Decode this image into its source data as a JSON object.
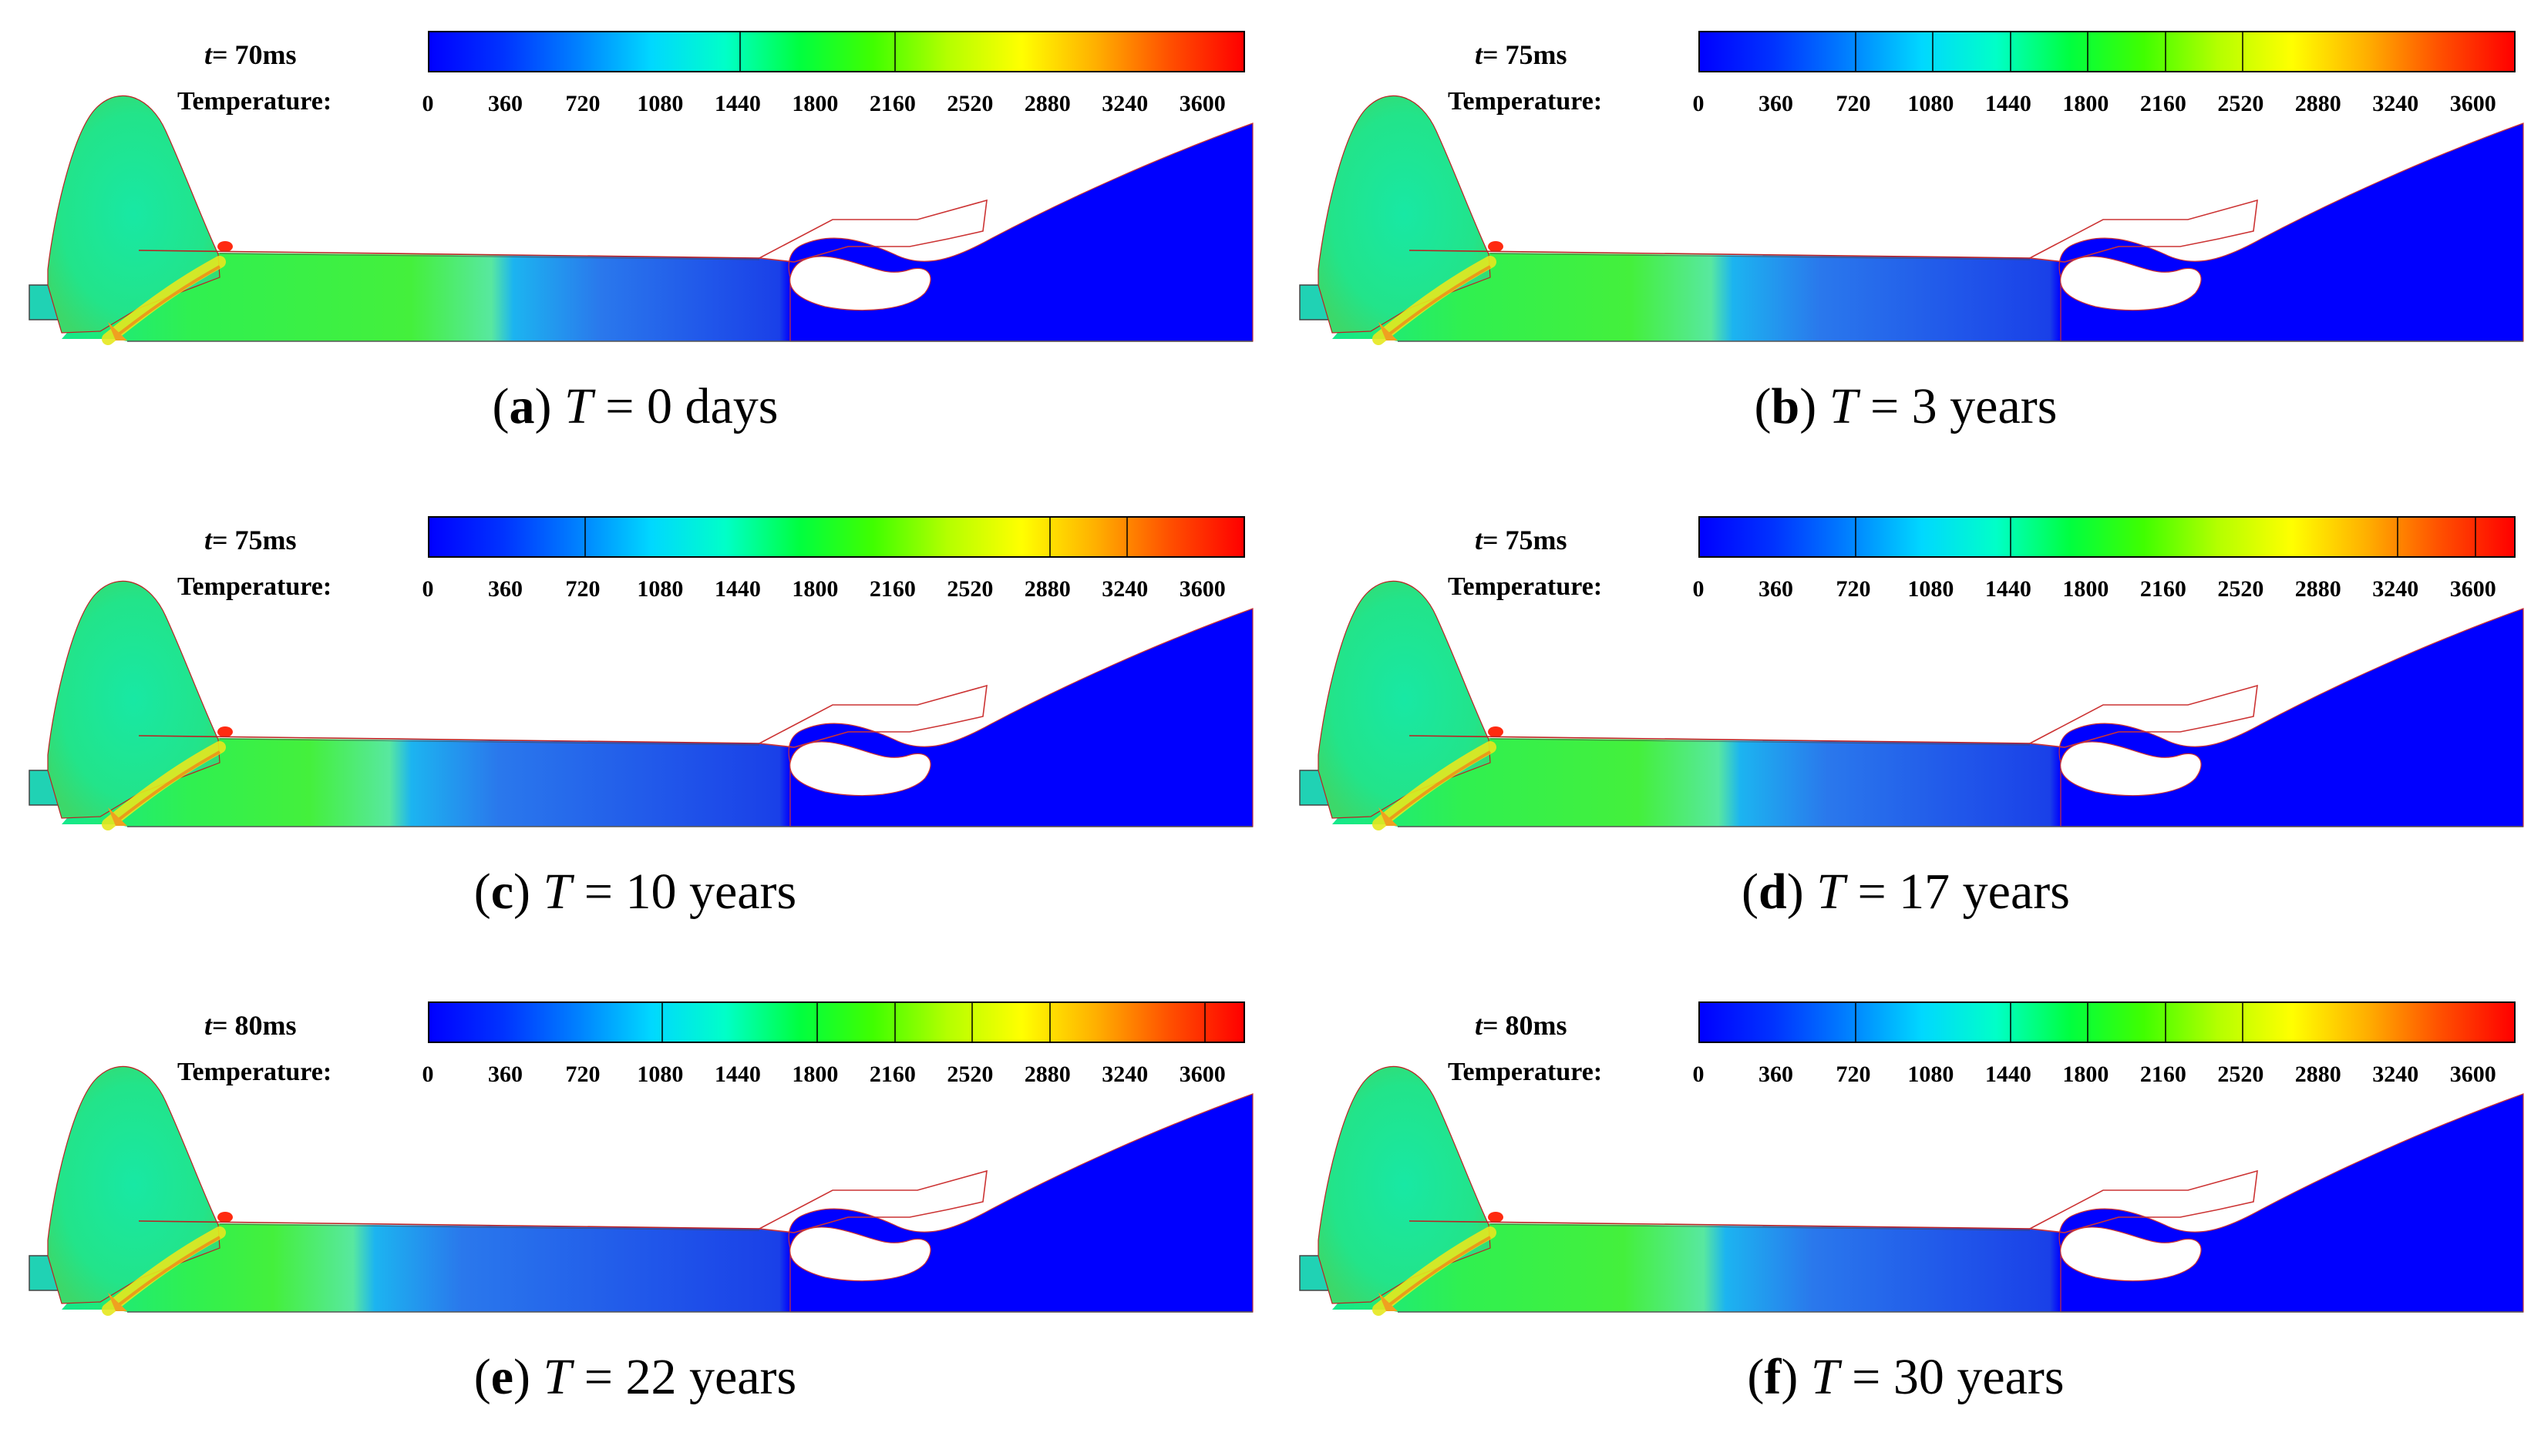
{
  "colorbar_ticks": [
    "0",
    "360",
    "720",
    "1080",
    "1440",
    "1800",
    "2160",
    "2520",
    "2880",
    "3240",
    "3600"
  ],
  "colorbar_gradient": [
    "#0000ff",
    "#0033ff",
    "#0080ff",
    "#00d8ff",
    "#00ffc8",
    "#00ff40",
    "#40ff00",
    "#b4ff00",
    "#ffff00",
    "#ffb000",
    "#ff5000",
    "#ff0000"
  ],
  "panels": [
    {
      "time_label": "= 70ms",
      "time_var": "t",
      "legend_label": "Temperature:",
      "caption_letter": "a",
      "caption_var": "T",
      "caption_value": " = 0 days",
      "front": 0.62,
      "stripe_sets": [
        4,
        6
      ]
    },
    {
      "time_label": "= 75ms",
      "time_var": "t",
      "legend_label": "Temperature:",
      "caption_letter": "b",
      "caption_var": "T",
      "caption_value": " = 3 years",
      "front": 0.55,
      "stripe_sets": [
        2,
        3,
        4,
        5,
        6,
        7
      ]
    },
    {
      "time_label": "= 75ms",
      "time_var": "t",
      "legend_label": "Temperature:",
      "caption_letter": "c",
      "caption_var": "T",
      "caption_value": " = 10 years",
      "front": 0.48,
      "stripe_sets": [
        2,
        8,
        9
      ]
    },
    {
      "time_label": "= 75ms",
      "time_var": "t",
      "legend_label": "Temperature:",
      "caption_letter": "d",
      "caption_var": "T",
      "caption_value": " = 17 years",
      "front": 0.56,
      "stripe_sets": [
        2,
        4,
        9,
        10
      ]
    },
    {
      "time_label": "= 80ms",
      "time_var": "t",
      "legend_label": "Temperature:",
      "caption_letter": "e",
      "caption_var": "T",
      "caption_value": " = 22 years",
      "front": 0.43,
      "stripe_sets": [
        3,
        5,
        6,
        7,
        8,
        10
      ]
    },
    {
      "time_label": "= 80ms",
      "time_var": "t",
      "legend_label": "Temperature:",
      "caption_letter": "f",
      "caption_var": "T",
      "caption_value": " = 30 years",
      "front": 0.54,
      "stripe_sets": [
        2,
        4,
        5,
        6,
        7
      ]
    }
  ]
}
